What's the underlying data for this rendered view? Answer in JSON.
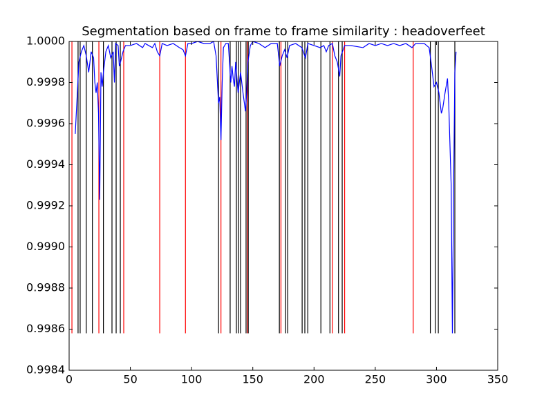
{
  "chart_data": {
    "type": "line",
    "title": "Segmentation based on frame to frame similarity : headoverfeet",
    "xlim": [
      0,
      350
    ],
    "xticks": [
      0,
      50,
      100,
      150,
      200,
      250,
      300,
      350
    ],
    "ylim": [
      0.9984,
      1
    ],
    "yticks": [
      0.9984,
      0.9986,
      0.9988,
      {
        "value": 0.999,
        "label": "0.9990"
      },
      0.9992,
      0.9994,
      0.9996,
      0.9998,
      {
        "value": 1,
        "label": "1.0000"
      }
    ],
    "vline_ymin": 0.99858,
    "vline_ymax": 1,
    "vlines": [
      {
        "color": "#ff0000",
        "x": [
          2.3,
          24.3,
          44.6,
          74,
          95,
          124,
          145.7,
          173,
          215,
          225,
          281
        ]
      },
      {
        "color": "#000000",
        "x": [
          7.3,
          9,
          14,
          19,
          28,
          35,
          38.4,
          41.8,
          122,
          131.5,
          136.6,
          138.3,
          140,
          144.5,
          146.3,
          171.7,
          176.8,
          178.5,
          190.3,
          192.5,
          194.9,
          205.6,
          213,
          220,
          223,
          295,
          299,
          301.5,
          315
        ]
      }
    ],
    "series": [
      {
        "color": "#0000ff",
        "x": [
          5,
          8,
          10,
          12,
          14,
          16,
          18,
          20,
          21,
          22,
          23,
          24,
          25,
          26,
          27,
          28,
          30,
          32,
          34,
          36,
          37,
          38,
          40,
          41,
          42,
          44,
          46,
          50,
          55,
          60,
          62,
          65,
          68,
          70,
          72,
          74,
          76,
          80,
          85,
          90,
          93,
          95,
          97,
          100,
          105,
          110,
          115,
          118,
          120,
          122,
          123,
          124,
          125,
          126,
          128,
          130,
          132,
          133,
          134,
          135,
          136,
          138,
          140,
          142,
          144,
          145,
          146,
          148,
          150,
          155,
          160,
          165,
          170,
          172,
          174,
          176,
          178,
          180,
          185,
          190,
          193,
          195,
          200,
          205,
          208,
          210,
          212,
          215,
          217,
          219,
          221,
          222,
          225,
          230,
          240,
          245,
          250,
          255,
          260,
          265,
          270,
          275,
          280,
          283,
          290,
          294,
          296,
          298,
          300,
          302,
          304,
          305,
          307,
          309,
          310,
          312,
          313,
          314,
          315,
          316
        ],
        "values": [
          0.99955,
          0.9999,
          0.99995,
          0.99998,
          0.99993,
          0.99985,
          0.99995,
          0.99992,
          0.9998,
          0.99975,
          0.9998,
          0.99965,
          0.99923,
          0.99985,
          0.99978,
          0.99985,
          0.99995,
          0.99998,
          0.99992,
          0.99995,
          0.9998,
          0.99999,
          0.99998,
          0.99988,
          0.9999,
          0.99995,
          0.99998,
          0.99998,
          0.99999,
          0.99997,
          0.99999,
          0.99998,
          0.99997,
          0.99999,
          0.99995,
          0.99993,
          0.99999,
          0.99998,
          0.99999,
          0.99997,
          0.99996,
          0.99993,
          0.99999,
          0.99999,
          1,
          0.99999,
          0.99999,
          1,
          0.99993,
          0.9997,
          0.99973,
          0.99952,
          0.9998,
          0.99997,
          0.99999,
          0.99999,
          0.9998,
          0.99988,
          0.99982,
          0.99978,
          0.9999,
          0.99975,
          0.99985,
          0.99975,
          0.99966,
          0.99975,
          0.9999,
          0.99998,
          1,
          0.99999,
          0.99997,
          0.99999,
          0.99999,
          0.99988,
          0.99993,
          0.99996,
          0.99992,
          0.99998,
          0.99999,
          0.99997,
          0.99992,
          0.99999,
          0.99998,
          0.99997,
          0.99998,
          0.99995,
          0.99998,
          0.99999,
          0.99993,
          0.9999,
          0.99983,
          0.99993,
          0.99998,
          0.99998,
          0.99997,
          0.99999,
          0.99998,
          0.99999,
          0.99998,
          0.99999,
          0.99998,
          0.99999,
          0.99997,
          0.99999,
          0.99999,
          0.99997,
          0.99988,
          0.99978,
          0.9998,
          0.99975,
          0.99965,
          0.99967,
          0.99975,
          0.99982,
          0.9997,
          0.9993,
          0.99858,
          0.9993,
          0.99985,
          0.99995
        ]
      }
    ]
  }
}
